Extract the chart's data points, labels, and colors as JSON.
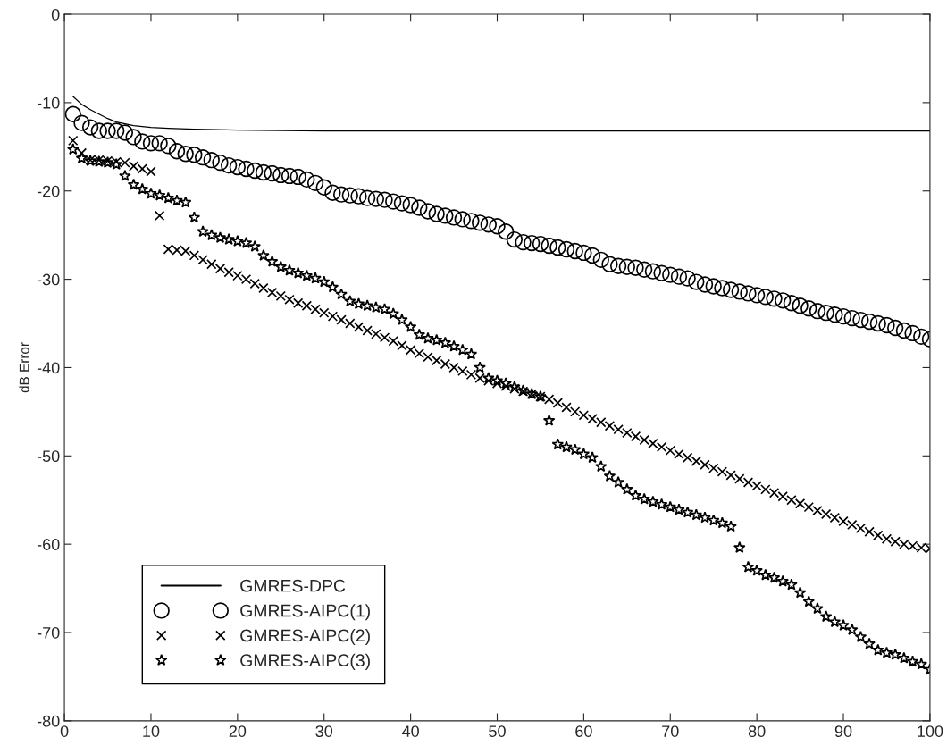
{
  "chart_data": {
    "type": "scatter",
    "ylabel": "dB Error",
    "xlim": [
      0,
      100
    ],
    "xticks": [
      0,
      10,
      20,
      30,
      40,
      50,
      60,
      70,
      80,
      90,
      100
    ],
    "ylim": [
      -80,
      0
    ],
    "yticks": [
      -80,
      -70,
      -60,
      -50,
      -40,
      -30,
      -20,
      -10,
      0
    ],
    "grid": false,
    "legend": "bottom left",
    "x": [
      1,
      2,
      3,
      4,
      5,
      6,
      7,
      8,
      9,
      10,
      11,
      12,
      13,
      14,
      15,
      16,
      17,
      18,
      19,
      20,
      21,
      22,
      23,
      24,
      25,
      26,
      27,
      28,
      29,
      30,
      31,
      32,
      33,
      34,
      35,
      36,
      37,
      38,
      39,
      40,
      41,
      42,
      43,
      44,
      45,
      46,
      47,
      48,
      49,
      50,
      51,
      52,
      53,
      54,
      55,
      56,
      57,
      58,
      59,
      60,
      61,
      62,
      63,
      64,
      65,
      66,
      67,
      68,
      69,
      70,
      71,
      72,
      73,
      74,
      75,
      76,
      77,
      78,
      79,
      80,
      81,
      82,
      83,
      84,
      85,
      86,
      87,
      88,
      89,
      90,
      91,
      92,
      93,
      94,
      95,
      96,
      97,
      98,
      99,
      100
    ],
    "series": [
      {
        "name": "GMRES-DPC",
        "type": "line",
        "color": "#000000",
        "marker": "none",
        "line_style": "solid",
        "x": [
          1,
          2,
          3,
          4,
          5,
          6,
          7,
          8,
          10,
          12,
          15,
          20,
          30,
          40,
          60,
          80,
          100
        ],
        "values": [
          -9.3,
          -10.2,
          -10.8,
          -11.3,
          -11.8,
          -12.2,
          -12.4,
          -12.6,
          -12.8,
          -12.9,
          -13.0,
          -13.1,
          -13.2,
          -13.2,
          -13.2,
          -13.2,
          -13.2
        ]
      },
      {
        "name": "GMRES-AIPC(1)",
        "color": "#000000",
        "marker": "circle",
        "values": [
          -11.3,
          -12.3,
          -12.8,
          -13.2,
          -13.2,
          -13.2,
          -13.4,
          -13.9,
          -14.4,
          -14.6,
          -14.6,
          -14.9,
          -15.5,
          -15.8,
          -15.9,
          -16.2,
          -16.5,
          -16.8,
          -17.1,
          -17.3,
          -17.5,
          -17.7,
          -17.9,
          -18.0,
          -18.2,
          -18.3,
          -18.4,
          -18.7,
          -19.1,
          -19.6,
          -20.2,
          -20.4,
          -20.5,
          -20.6,
          -20.8,
          -20.9,
          -21.0,
          -21.2,
          -21.4,
          -21.6,
          -21.9,
          -22.3,
          -22.6,
          -22.8,
          -23.0,
          -23.2,
          -23.4,
          -23.6,
          -23.8,
          -24.0,
          -24.6,
          -25.5,
          -25.8,
          -25.9,
          -26.0,
          -26.2,
          -26.4,
          -26.6,
          -26.8,
          -27.0,
          -27.3,
          -27.8,
          -28.3,
          -28.5,
          -28.6,
          -28.7,
          -28.9,
          -29.1,
          -29.3,
          -29.5,
          -29.7,
          -29.9,
          -30.3,
          -30.6,
          -30.8,
          -31.0,
          -31.2,
          -31.4,
          -31.6,
          -31.8,
          -32.0,
          -32.2,
          -32.4,
          -32.7,
          -33.0,
          -33.3,
          -33.6,
          -33.8,
          -34.0,
          -34.2,
          -34.4,
          -34.6,
          -34.8,
          -35.0,
          -35.2,
          -35.5,
          -35.8,
          -36.1,
          -36.5,
          -36.8
        ]
      },
      {
        "name": "GMRES-AIPC(2)",
        "color": "#000000",
        "marker": "cross",
        "values": [
          -14.3,
          -15.7,
          -16.5,
          -16.5,
          -16.6,
          -16.7,
          -16.8,
          -17.2,
          -17.5,
          -17.8,
          -22.8,
          -26.6,
          -26.7,
          -26.8,
          -27.3,
          -27.8,
          -28.3,
          -28.8,
          -29.2,
          -29.6,
          -30.0,
          -30.5,
          -31.0,
          -31.5,
          -31.9,
          -32.3,
          -32.7,
          -33.0,
          -33.4,
          -33.8,
          -34.2,
          -34.6,
          -35.0,
          -35.4,
          -35.8,
          -36.2,
          -36.6,
          -37.0,
          -37.5,
          -38.0,
          -38.4,
          -38.8,
          -39.2,
          -39.6,
          -40.0,
          -40.4,
          -40.8,
          -41.2,
          -41.5,
          -41.8,
          -42.1,
          -42.4,
          -42.7,
          -43.0,
          -43.3,
          -43.6,
          -44.0,
          -44.5,
          -45.0,
          -45.4,
          -45.8,
          -46.2,
          -46.6,
          -47.0,
          -47.4,
          -47.8,
          -48.2,
          -48.6,
          -49.0,
          -49.4,
          -49.8,
          -50.2,
          -50.6,
          -51.0,
          -51.4,
          -51.8,
          -52.2,
          -52.6,
          -53.0,
          -53.4,
          -53.8,
          -54.2,
          -54.6,
          -55.0,
          -55.4,
          -55.8,
          -56.2,
          -56.6,
          -57.0,
          -57.4,
          -57.8,
          -58.2,
          -58.6,
          -59.0,
          -59.4,
          -59.7,
          -60.0,
          -60.2,
          -60.4,
          -60.5
        ]
      },
      {
        "name": "GMRES-AIPC(3)",
        "color": "#000000",
        "marker": "star",
        "values": [
          -15.3,
          -16.3,
          -16.6,
          -16.7,
          -16.8,
          -17.0,
          -18.3,
          -19.3,
          -19.8,
          -20.3,
          -20.5,
          -20.8,
          -21.1,
          -21.3,
          -23.0,
          -24.6,
          -25.0,
          -25.3,
          -25.5,
          -25.7,
          -25.9,
          -26.3,
          -27.3,
          -28.0,
          -28.6,
          -29.0,
          -29.3,
          -29.6,
          -29.9,
          -30.3,
          -30.9,
          -31.7,
          -32.5,
          -32.8,
          -33.0,
          -33.2,
          -33.4,
          -33.9,
          -34.6,
          -35.4,
          -36.3,
          -36.7,
          -36.9,
          -37.2,
          -37.6,
          -38.0,
          -38.5,
          -40.0,
          -41.2,
          -41.5,
          -41.8,
          -42.2,
          -42.6,
          -43.0,
          -43.3,
          -46.0,
          -48.7,
          -49.0,
          -49.3,
          -49.8,
          -50.2,
          -51.2,
          -52.3,
          -53.0,
          -53.8,
          -54.5,
          -54.9,
          -55.2,
          -55.5,
          -55.8,
          -56.1,
          -56.4,
          -56.7,
          -57.0,
          -57.3,
          -57.6,
          -58.0,
          -60.4,
          -62.6,
          -63.0,
          -63.5,
          -63.8,
          -64.2,
          -64.6,
          -65.5,
          -66.5,
          -67.3,
          -68.2,
          -68.8,
          -69.2,
          -69.7,
          -70.5,
          -71.3,
          -72.0,
          -72.3,
          -72.5,
          -72.9,
          -73.3,
          -73.6,
          -74.2
        ]
      }
    ]
  }
}
